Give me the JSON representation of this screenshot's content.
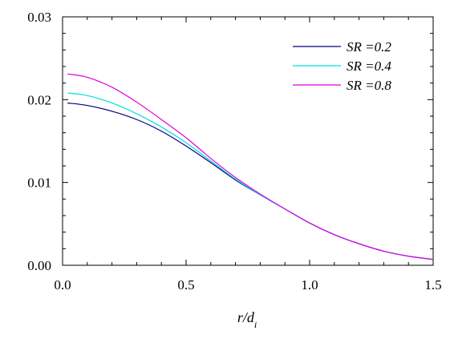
{
  "chart_data": {
    "type": "line",
    "title": "",
    "xlabel": {
      "main": "r/d",
      "sub": "i"
    },
    "ylabel": "",
    "xlim": [
      0.0,
      1.5
    ],
    "ylim": [
      0.0,
      0.03
    ],
    "x_ticks": [
      "0.0",
      "0.5",
      "1.0",
      "1.5"
    ],
    "y_ticks": [
      "0.00",
      "0.01",
      "0.02",
      "0.03"
    ],
    "x_tick_values": [
      0.0,
      0.5,
      1.0,
      1.5
    ],
    "y_tick_values": [
      0.0,
      0.01,
      0.02,
      0.03
    ],
    "grid": false,
    "legend_position": "top-right",
    "series": [
      {
        "name": "SR =0.2",
        "color": "#000080",
        "x": [
          0.02,
          0.1,
          0.2,
          0.3,
          0.4,
          0.5,
          0.6,
          0.7,
          0.8,
          0.9,
          1.0,
          1.1,
          1.2,
          1.3,
          1.4,
          1.5
        ],
        "y": [
          0.0196,
          0.0193,
          0.0186,
          0.0176,
          0.0162,
          0.0144,
          0.0124,
          0.0103,
          0.0085,
          0.0068,
          0.0051,
          0.0037,
          0.0026,
          0.0017,
          0.0011,
          0.0007
        ]
      },
      {
        "name": "SR =0.4",
        "color": "#00e0e0",
        "x": [
          0.02,
          0.1,
          0.2,
          0.3,
          0.4,
          0.5,
          0.6,
          0.7,
          0.8,
          0.9,
          1.0,
          1.1,
          1.2,
          1.3,
          1.4,
          1.5
        ],
        "y": [
          0.0208,
          0.0205,
          0.0196,
          0.0183,
          0.0167,
          0.0148,
          0.0126,
          0.0104,
          0.0085,
          0.0068,
          0.0051,
          0.0037,
          0.0026,
          0.0017,
          0.0011,
          0.0007
        ]
      },
      {
        "name": "SR =0.8",
        "color": "#e000e0",
        "x": [
          0.02,
          0.1,
          0.2,
          0.3,
          0.4,
          0.5,
          0.6,
          0.7,
          0.8,
          0.9,
          1.0,
          1.1,
          1.2,
          1.3,
          1.4,
          1.5
        ],
        "y": [
          0.0231,
          0.0227,
          0.0215,
          0.0197,
          0.0176,
          0.0154,
          0.0129,
          0.0106,
          0.0086,
          0.0068,
          0.0051,
          0.0037,
          0.0026,
          0.0017,
          0.0011,
          0.0007
        ]
      }
    ]
  }
}
